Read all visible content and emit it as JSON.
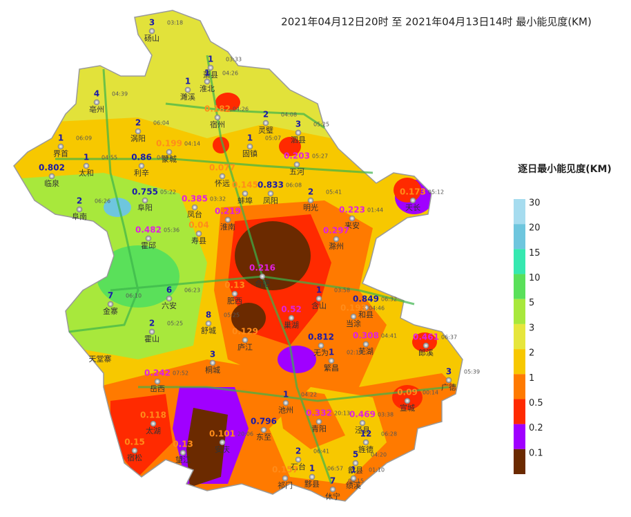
{
  "title": "2021年04月12日20时  至  2021年04月13日14时  最小能见度(KM)",
  "legend": {
    "title": "逐日最小能见度(KM)",
    "bins": [
      {
        "label": 30,
        "color": "#a6dcef"
      },
      {
        "label": 20,
        "color": "#6ec6de"
      },
      {
        "label": 15,
        "color": "#36e8b0"
      },
      {
        "label": 10,
        "color": "#5ae05a"
      },
      {
        "label": 5,
        "color": "#a8e83c"
      },
      {
        "label": 3,
        "color": "#e6e63c"
      },
      {
        "label": 2,
        "color": "#f7c800"
      },
      {
        "label": 1,
        "color": "#ff7a00"
      },
      {
        "label": 0.5,
        "color": "#ff2a00"
      },
      {
        "label": 0.2,
        "color": "#a000ff"
      },
      {
        "label": 0.1,
        "color": "#6b2a00"
      }
    ]
  },
  "stations": [
    {
      "name": "砀山",
      "value": 3,
      "time": "03:18"
    },
    {
      "name": "萧县",
      "value": 1,
      "time": "03:33"
    },
    {
      "name": "淮北",
      "value": 1,
      "time": "04:26"
    },
    {
      "name": "濉溪",
      "value": 1
    },
    {
      "name": "亳州",
      "value": 4,
      "time": "04:39"
    },
    {
      "name": "宿州",
      "value": 0.182,
      "time": "04:26"
    },
    {
      "name": "灵璧",
      "value": 2,
      "time": "04:08"
    },
    {
      "name": "泗县",
      "value": 3,
      "time": "05:25"
    },
    {
      "name": "涡阳",
      "value": 2,
      "time": "06:04"
    },
    {
      "name": "蒙城",
      "value": 0.199,
      "time": "04:14"
    },
    {
      "name": "固镇",
      "value": 1,
      "time": "05:07"
    },
    {
      "name": "五河",
      "value": 0.203,
      "time": "05:27"
    },
    {
      "name": "界首",
      "value": 1,
      "time": "06:09"
    },
    {
      "name": "太和",
      "value": 1,
      "time": "04:55"
    },
    {
      "name": "临泉",
      "value": 0.802
    },
    {
      "name": "利辛",
      "value": 0.86,
      "time": "04:13"
    },
    {
      "name": "怀远",
      "value": 0.077
    },
    {
      "name": "蚌埠",
      "value": 0.145
    },
    {
      "name": "凤阳",
      "value": 0.833,
      "time": "06:08"
    },
    {
      "name": "明光",
      "value": 2,
      "time": "05:41"
    },
    {
      "name": "阜南",
      "value": 2,
      "time": "06:26"
    },
    {
      "name": "阜阳",
      "value": 0.755,
      "time": "05:22"
    },
    {
      "name": "凤台",
      "value": 0.385,
      "time": "03:32"
    },
    {
      "name": "淮南",
      "value": 0.219
    },
    {
      "name": "霍邱",
      "value": 0.482,
      "time": "05:36"
    },
    {
      "name": "寿县",
      "value": 0.04
    },
    {
      "name": "天长",
      "value": 0.173,
      "time": "05:12"
    },
    {
      "name": "来安",
      "value": 0.223,
      "time": "01:44"
    },
    {
      "name": "滁州",
      "value": 0.297
    },
    {
      "name": "金寨",
      "value": 7,
      "time": "06:10"
    },
    {
      "name": "六安",
      "value": 6,
      "time": "06:23"
    },
    {
      "name": "舒城",
      "value": 8,
      "time": "05:25"
    },
    {
      "name": "合肥",
      "value": 0.216
    },
    {
      "name": "肥西",
      "value": 0.13
    },
    {
      "name": "巢湖",
      "value": 0.52
    },
    {
      "name": "含山",
      "value": 1,
      "time": "03:58"
    },
    {
      "name": "和县",
      "value": 0.849,
      "time": "06:32"
    },
    {
      "name": "当涂",
      "value": 0.193,
      "time": "04:46"
    },
    {
      "name": "霍山",
      "value": 2,
      "time": "05:25"
    },
    {
      "name": "庐江",
      "value": 0.129
    },
    {
      "name": "无为",
      "value": 0.812
    },
    {
      "name": "芜湖",
      "value": 0.308,
      "time": "04:41"
    },
    {
      "name": "繁昌",
      "value": 1,
      "time": "02:19"
    },
    {
      "name": "郎溪",
      "value": 0.461,
      "time": "06:37"
    },
    {
      "name": "广德",
      "value": 3,
      "time": "05:39"
    },
    {
      "name": "宣城",
      "value": 0.09,
      "time": "00:14"
    },
    {
      "name": "岳西",
      "value": 0.242,
      "time": "07:52"
    },
    {
      "name": "桐城",
      "value": 3
    },
    {
      "name": "太湖",
      "value": 0.118
    },
    {
      "name": "宿松",
      "value": 0.15
    },
    {
      "name": "望江",
      "value": 0.13
    },
    {
      "name": "安庆",
      "value": 0.101,
      "time": "20:06"
    },
    {
      "name": "东至",
      "value": 0.796
    },
    {
      "name": "池州",
      "value": 1,
      "time": "04:22"
    },
    {
      "name": "青阳",
      "value": 0.332,
      "time": "20:13"
    },
    {
      "name": "泾县",
      "value": 0.469,
      "time": "03:38"
    },
    {
      "name": "旌德",
      "value": 12,
      "time": "06:28"
    },
    {
      "name": "石台",
      "value": 2,
      "time": "06:41"
    },
    {
      "name": "祁门",
      "value": 0.157
    },
    {
      "name": "黟县",
      "value": 1,
      "time": "06:57"
    },
    {
      "name": "休宁",
      "value": 7,
      "time": "04:15"
    },
    {
      "name": "歙县",
      "value": 5,
      "time": "04:20"
    },
    {
      "name": "绩溪",
      "value": 1,
      "time": "01:10"
    }
  ],
  "place_labels": [
    "天堂寨"
  ]
}
